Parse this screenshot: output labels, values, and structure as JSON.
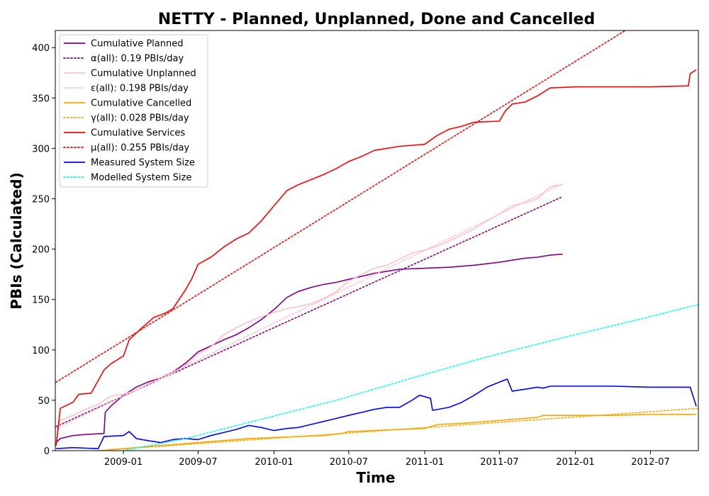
{
  "chart_data": {
    "type": "line",
    "title": "NETTY - Planned, Unplanned, Done  and Cancelled",
    "xlabel": "Time",
    "ylabel": "PBIs (Calculated)",
    "xlim": [
      "2008-07-20",
      "2012-10-25"
    ],
    "ylim": [
      0,
      417
    ],
    "x_ticks": [
      "2009-01",
      "2009-07",
      "2010-01",
      "2010-07",
      "2011-01",
      "2011-07",
      "2012-01",
      "2012-07"
    ],
    "y_ticks": [
      0,
      50,
      100,
      150,
      200,
      250,
      300,
      350,
      400
    ],
    "grid": false,
    "legend_position": "top-left",
    "series": [
      {
        "name": "Cumulative Planned",
        "style": "solid",
        "color": "#800080",
        "points": [
          [
            "2008-07-22",
            8
          ],
          [
            "2008-08-01",
            12
          ],
          [
            "2008-09-01",
            15
          ],
          [
            "2008-10-01",
            16
          ],
          [
            "2008-11-15",
            17
          ],
          [
            "2008-11-18",
            38
          ],
          [
            "2008-12-01",
            44
          ],
          [
            "2009-01-01",
            55
          ],
          [
            "2009-02-01",
            63
          ],
          [
            "2009-03-01",
            68
          ],
          [
            "2009-04-01",
            72
          ],
          [
            "2009-05-01",
            78
          ],
          [
            "2009-06-01",
            87
          ],
          [
            "2009-07-01",
            98
          ],
          [
            "2009-08-01",
            104
          ],
          [
            "2009-09-01",
            110
          ],
          [
            "2009-10-01",
            115
          ],
          [
            "2009-11-01",
            122
          ],
          [
            "2009-12-01",
            130
          ],
          [
            "2010-01-01",
            140
          ],
          [
            "2010-02-01",
            152
          ],
          [
            "2010-03-01",
            158
          ],
          [
            "2010-04-01",
            162
          ],
          [
            "2010-05-01",
            165
          ],
          [
            "2010-06-01",
            167
          ],
          [
            "2010-07-01",
            170
          ],
          [
            "2010-08-01",
            173
          ],
          [
            "2010-09-01",
            176
          ],
          [
            "2010-10-01",
            178
          ],
          [
            "2010-11-01",
            180
          ],
          [
            "2011-01-01",
            181
          ],
          [
            "2011-03-01",
            182
          ],
          [
            "2011-05-01",
            184
          ],
          [
            "2011-07-01",
            187
          ],
          [
            "2011-08-01",
            189
          ],
          [
            "2011-09-01",
            191
          ],
          [
            "2011-10-01",
            192
          ],
          [
            "2011-11-01",
            194
          ],
          [
            "2011-12-01",
            195
          ]
        ]
      },
      {
        "name": "α(all): 0.19 PBIs/day",
        "style": "dotted",
        "color": "#800080",
        "points": [
          [
            "2008-07-22",
            24
          ],
          [
            "2011-12-01",
            252
          ]
        ]
      },
      {
        "name": "Cumulative Unplanned",
        "style": "solid",
        "color": "#ffc0cb",
        "points": [
          [
            "2008-07-22",
            10
          ],
          [
            "2008-08-01",
            30
          ],
          [
            "2008-09-01",
            35
          ],
          [
            "2008-10-01",
            41
          ],
          [
            "2008-11-01",
            46
          ],
          [
            "2008-12-01",
            54
          ],
          [
            "2009-01-01",
            56
          ],
          [
            "2009-02-01",
            60
          ],
          [
            "2009-03-01",
            66
          ],
          [
            "2009-04-01",
            71
          ],
          [
            "2009-05-01",
            77
          ],
          [
            "2009-06-01",
            85
          ],
          [
            "2009-07-01",
            96
          ],
          [
            "2009-08-01",
            103
          ],
          [
            "2009-09-01",
            115
          ],
          [
            "2009-10-01",
            122
          ],
          [
            "2009-11-01",
            128
          ],
          [
            "2009-12-01",
            133
          ],
          [
            "2010-01-01",
            137
          ],
          [
            "2010-02-01",
            141
          ],
          [
            "2010-03-01",
            143
          ],
          [
            "2010-04-01",
            146
          ],
          [
            "2010-05-01",
            151
          ],
          [
            "2010-06-01",
            158
          ],
          [
            "2010-07-01",
            168
          ],
          [
            "2010-08-01",
            175
          ],
          [
            "2010-09-01",
            181
          ],
          [
            "2010-10-01",
            184
          ],
          [
            "2010-11-01",
            190
          ],
          [
            "2010-12-01",
            196
          ],
          [
            "2011-01-01",
            199
          ],
          [
            "2011-02-01",
            203
          ],
          [
            "2011-03-01",
            208
          ],
          [
            "2011-04-01",
            214
          ],
          [
            "2011-05-01",
            220
          ],
          [
            "2011-06-01",
            228
          ],
          [
            "2011-07-01",
            235
          ],
          [
            "2011-08-01",
            243
          ],
          [
            "2011-09-01",
            246
          ],
          [
            "2011-10-01",
            250
          ],
          [
            "2011-11-01",
            262
          ],
          [
            "2011-12-01",
            264
          ]
        ]
      },
      {
        "name": "ε(all): 0.198 PBIs/day",
        "style": "dotted",
        "color": "#ffc0cb",
        "points": [
          [
            "2008-07-22",
            22
          ],
          [
            "2011-12-01",
            265
          ]
        ]
      },
      {
        "name": "Cumulative Cancelled",
        "style": "solid",
        "color": "#ffa500",
        "points": [
          [
            "2008-11-15",
            0
          ],
          [
            "2008-12-01",
            1
          ],
          [
            "2009-01-01",
            2
          ],
          [
            "2009-03-01",
            4
          ],
          [
            "2009-05-01",
            6
          ],
          [
            "2009-07-01",
            8
          ],
          [
            "2009-09-01",
            10
          ],
          [
            "2009-11-01",
            12
          ],
          [
            "2010-01-01",
            13
          ],
          [
            "2010-03-01",
            14
          ],
          [
            "2010-05-01",
            15
          ],
          [
            "2010-06-15",
            17
          ],
          [
            "2010-07-01",
            19
          ],
          [
            "2010-09-01",
            20
          ],
          [
            "2010-11-01",
            21
          ],
          [
            "2011-01-01",
            22
          ],
          [
            "2011-02-01",
            26
          ],
          [
            "2011-04-01",
            27
          ],
          [
            "2011-06-01",
            29
          ],
          [
            "2011-08-01",
            31
          ],
          [
            "2011-10-01",
            33
          ],
          [
            "2011-10-15",
            35
          ],
          [
            "2012-01-01",
            35
          ],
          [
            "2012-04-01",
            35
          ],
          [
            "2012-07-01",
            36
          ],
          [
            "2012-10-20",
            36
          ]
        ]
      },
      {
        "name": "γ(all): 0.028 PBIs/day",
        "style": "dotted",
        "color": "#ffa500",
        "points": [
          [
            "2008-11-01",
            0
          ],
          [
            "2012-10-25",
            42
          ]
        ]
      },
      {
        "name": "Cumulative Services",
        "style": "solid",
        "color": "#ff0000",
        "points": [
          [
            "2008-07-22",
            5
          ],
          [
            "2008-08-01",
            42
          ],
          [
            "2008-09-01",
            48
          ],
          [
            "2008-09-15",
            56
          ],
          [
            "2008-10-15",
            57
          ],
          [
            "2008-11-15",
            80
          ],
          [
            "2008-12-01",
            86
          ],
          [
            "2009-01-01",
            94
          ],
          [
            "2009-01-15",
            110
          ],
          [
            "2009-02-15",
            122
          ],
          [
            "2009-03-15",
            132
          ],
          [
            "2009-04-15",
            137
          ],
          [
            "2009-05-01",
            141
          ],
          [
            "2009-06-01",
            160
          ],
          [
            "2009-06-15",
            170
          ],
          [
            "2009-07-01",
            185
          ],
          [
            "2009-08-01",
            192
          ],
          [
            "2009-09-01",
            202
          ],
          [
            "2009-10-01",
            210
          ],
          [
            "2009-11-01",
            216
          ],
          [
            "2009-12-01",
            228
          ],
          [
            "2010-01-01",
            243
          ],
          [
            "2010-02-01",
            258
          ],
          [
            "2010-03-01",
            264
          ],
          [
            "2010-04-01",
            269
          ],
          [
            "2010-05-01",
            274
          ],
          [
            "2010-06-01",
            280
          ],
          [
            "2010-07-01",
            287
          ],
          [
            "2010-08-01",
            292
          ],
          [
            "2010-09-01",
            298
          ],
          [
            "2010-10-01",
            300
          ],
          [
            "2010-11-01",
            302
          ],
          [
            "2011-01-01",
            304
          ],
          [
            "2011-02-01",
            313
          ],
          [
            "2011-03-01",
            319
          ],
          [
            "2011-04-01",
            322
          ],
          [
            "2011-05-01",
            326
          ],
          [
            "2011-07-01",
            327
          ],
          [
            "2011-07-15",
            337
          ],
          [
            "2011-08-01",
            344
          ],
          [
            "2011-09-01",
            346
          ],
          [
            "2011-10-01",
            352
          ],
          [
            "2011-11-01",
            360
          ],
          [
            "2012-01-01",
            361
          ],
          [
            "2012-04-01",
            361
          ],
          [
            "2012-07-01",
            361
          ],
          [
            "2012-10-01",
            362
          ],
          [
            "2012-10-05",
            374
          ],
          [
            "2012-10-20",
            378
          ]
        ]
      },
      {
        "name": "μ(all): 0.255 PBIs/day",
        "style": "dotted",
        "color": "#ff0000",
        "points": [
          [
            "2008-07-22",
            68
          ],
          [
            "2012-05-01",
            417
          ]
        ]
      },
      {
        "name": "Measured System Size",
        "style": "solid",
        "color": "#0000ff",
        "points": [
          [
            "2008-07-22",
            2
          ],
          [
            "2008-09-01",
            3
          ],
          [
            "2008-11-01",
            2
          ],
          [
            "2008-11-15",
            14
          ],
          [
            "2009-01-01",
            15
          ],
          [
            "2009-01-15",
            19
          ],
          [
            "2009-02-01",
            12
          ],
          [
            "2009-03-01",
            10
          ],
          [
            "2009-04-01",
            8
          ],
          [
            "2009-05-01",
            11
          ],
          [
            "2009-06-01",
            12
          ],
          [
            "2009-07-01",
            11
          ],
          [
            "2009-08-01",
            15
          ],
          [
            "2009-09-01",
            18
          ],
          [
            "2009-10-01",
            21
          ],
          [
            "2009-11-01",
            25
          ],
          [
            "2009-12-01",
            23
          ],
          [
            "2010-01-01",
            20
          ],
          [
            "2010-02-01",
            22
          ],
          [
            "2010-03-01",
            23
          ],
          [
            "2010-04-01",
            26
          ],
          [
            "2010-05-01",
            29
          ],
          [
            "2010-06-01",
            32
          ],
          [
            "2010-07-01",
            35
          ],
          [
            "2010-08-01",
            38
          ],
          [
            "2010-09-01",
            41
          ],
          [
            "2010-10-01",
            43
          ],
          [
            "2010-11-01",
            43
          ],
          [
            "2010-12-01",
            50
          ],
          [
            "2010-12-20",
            55
          ],
          [
            "2011-01-15",
            52
          ],
          [
            "2011-01-20",
            40
          ],
          [
            "2011-03-01",
            43
          ],
          [
            "2011-04-01",
            48
          ],
          [
            "2011-05-01",
            55
          ],
          [
            "2011-06-01",
            63
          ],
          [
            "2011-07-01",
            68
          ],
          [
            "2011-07-20",
            71
          ],
          [
            "2011-08-01",
            59
          ],
          [
            "2011-09-01",
            61
          ],
          [
            "2011-10-01",
            63
          ],
          [
            "2011-10-15",
            62
          ],
          [
            "2011-11-01",
            64
          ],
          [
            "2012-01-01",
            64
          ],
          [
            "2012-04-01",
            64
          ],
          [
            "2012-07-01",
            63
          ],
          [
            "2012-10-05",
            63
          ],
          [
            "2012-10-20",
            44
          ]
        ]
      },
      {
        "name": "Modelled System Size",
        "style": "dotted",
        "color": "#00ffff",
        "points": [
          [
            "2009-01-01",
            0
          ],
          [
            "2009-06-01",
            12
          ],
          [
            "2009-11-01",
            28
          ],
          [
            "2010-06-01",
            50
          ],
          [
            "2010-12-01",
            72
          ],
          [
            "2011-06-01",
            93
          ],
          [
            "2011-12-01",
            112
          ],
          [
            "2012-06-01",
            130
          ],
          [
            "2012-10-25",
            145
          ]
        ]
      }
    ]
  }
}
